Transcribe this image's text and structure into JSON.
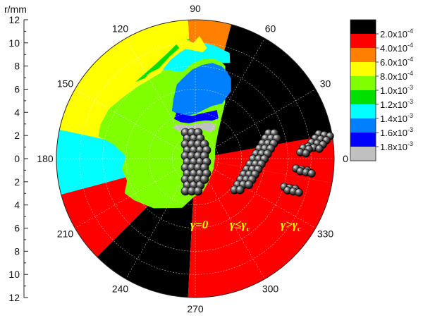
{
  "chart_data": {
    "type": "polar_contour",
    "axis_title": "r/mm",
    "r_axis": {
      "range": [
        0,
        12
      ],
      "major_ticks": [
        0,
        2,
        4,
        6,
        8,
        10,
        12
      ],
      "tick_labels_upper": [
        "0",
        "2",
        "4",
        "6",
        "8",
        "10",
        "12"
      ],
      "tick_labels_lower": [
        "2",
        "4",
        "6",
        "8",
        "10",
        "12"
      ]
    },
    "angle_axis": {
      "unit": "degree",
      "direction": "counterclockwise",
      "zero_at": "right",
      "ticks": [
        0,
        30,
        60,
        90,
        120,
        150,
        180,
        210,
        240,
        270,
        300,
        330
      ],
      "tick_labels": [
        "0",
        "30",
        "60",
        "90",
        "120",
        "150",
        "180",
        "210",
        "240",
        "270",
        "300",
        "330"
      ]
    },
    "grid": true,
    "legend": {
      "placement": "right",
      "items": [
        {
          "base": "2.0x10",
          "exp": "-4",
          "color": "#000000"
        },
        {
          "base": "4.0x10",
          "exp": "-4",
          "color": "#ff0000"
        },
        {
          "base": "6.0x10",
          "exp": "-4",
          "color": "#ff8000"
        },
        {
          "base": "8.0x10",
          "exp": "-4",
          "color": "#ffff00"
        },
        {
          "base": "1.0x10",
          "exp": "-3",
          "color": "#80ff00"
        },
        {
          "base": "1.2x10",
          "exp": "-3",
          "color": "#00e000"
        },
        {
          "base": "1.4x10",
          "exp": "-3",
          "color": "#00ffff"
        },
        {
          "base": "1.6x10",
          "exp": "-3",
          "color": "#0080ff"
        },
        {
          "base": "1.8x10",
          "exp": "-3",
          "color": "#0000ff"
        }
      ],
      "extra_color": "#c0c0c0"
    },
    "sectors": [
      {
        "from": 350,
        "to": 425,
        "r": 12,
        "level": "#ff0000"
      },
      {
        "from": 10,
        "to": 75,
        "r": 12,
        "level": "#000000"
      },
      {
        "from": 75,
        "to": 93,
        "r": 12,
        "level": "#ff8000"
      },
      {
        "from": 93,
        "to": 122,
        "r": 12,
        "level": "#ffff00"
      },
      {
        "from": 122,
        "to": 168,
        "r": 12,
        "level": "#ffff00"
      },
      {
        "from": 168,
        "to": 195,
        "r": 12,
        "level": "#00ffff"
      },
      {
        "from": 195,
        "to": 225,
        "r": 12,
        "level": "#ff0000"
      },
      {
        "from": 225,
        "to": 267,
        "r": 12,
        "level": "#000000"
      },
      {
        "from": 267,
        "to": 350,
        "r": 12,
        "level": "#ff0000"
      }
    ],
    "annotations": [
      {
        "text": "γ=0",
        "color": "#ffff00"
      },
      {
        "text": "γ≤γ",
        "sub": "c",
        "color": "#ffff00"
      },
      {
        "text": "γ>γ",
        "sub": "c",
        "color": "#ffff00"
      }
    ]
  }
}
